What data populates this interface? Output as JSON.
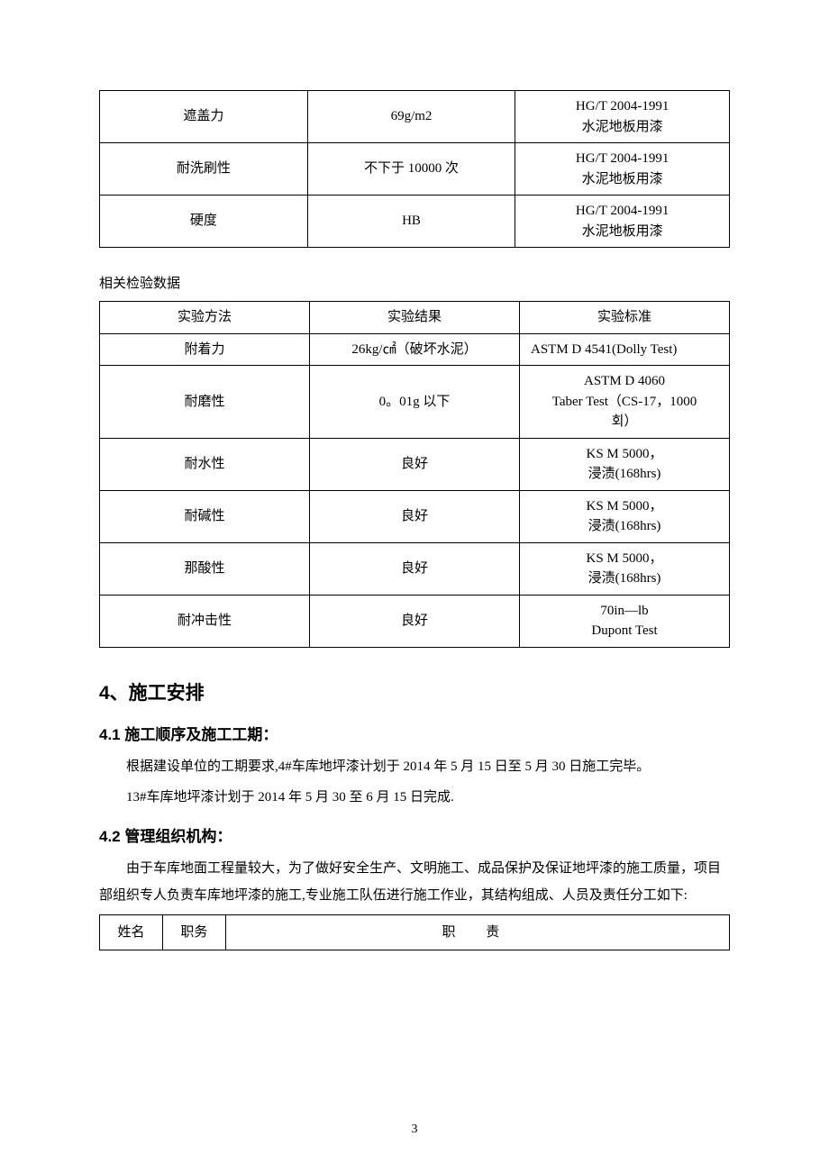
{
  "table1": {
    "rows": [
      {
        "c1": "遮盖力",
        "c2": "69g/m2",
        "c3": "HG/T 2004-1991\n水泥地板用漆"
      },
      {
        "c1": "耐洗刷性",
        "c2": "不下于 10000 次",
        "c3": "HG/T 2004-1991\n水泥地板用漆"
      },
      {
        "c1": "硬度",
        "c2": "HB",
        "c3": "HG/T 2004-1991\n水泥地板用漆"
      }
    ]
  },
  "subheading": "相关检验数据",
  "table2": {
    "header": {
      "c1": "实验方法",
      "c2": "实验结果",
      "c3": "实验标准"
    },
    "rows": [
      {
        "c1": "附着力",
        "c2": "26kg/㎠（破坏水泥）",
        "c3": "ASTM D 4541(Dolly Test)"
      },
      {
        "c1": "耐磨性",
        "c2": "0。01g 以下",
        "c3": "ASTM D 4060\nTaber Test（CS-17，1000\n회）"
      },
      {
        "c1": "耐水性",
        "c2": "良好",
        "c3": "KS M 5000，\n浸渍(168hrs)"
      },
      {
        "c1": "耐碱性",
        "c2": "良好",
        "c3": "KS M 5000，\n浸渍(168hrs)"
      },
      {
        "c1": "那酸性",
        "c2": "良好",
        "c3": "KS M 5000，\n浸渍(168hrs)"
      },
      {
        "c1": "耐冲击性",
        "c2": "良好",
        "c3": "70in—lb\nDupont Test"
      }
    ]
  },
  "section4": {
    "title": "4、施工安排",
    "sub41_title": "4.1 施工顺序及施工工期：",
    "sub41_p1": "根据建设单位的工期要求,4#车库地坪漆计划于 2014 年 5 月 15 日至 5 月 30 日施工完毕。",
    "sub41_p2": "13#车库地坪漆计划于 2014 年 5 月 30 至 6 月 15 日完成.",
    "sub42_title": "4.2 管理组织机构：",
    "sub42_p1": "由于车库地面工程量较大，为了做好安全生产、文明施工、成品保护及保证地坪漆的施工质量，项目部组织专人负责车库地坪漆的施工,专业施工队伍进行施工作业，其结构组成、人员及责任分工如下:"
  },
  "table3": {
    "header": {
      "name": "姓名",
      "role": "职务",
      "duty": "职   责"
    }
  },
  "pageNumber": "3",
  "colors": {
    "text": "#000000",
    "border": "#000000",
    "background": "#ffffff"
  },
  "fonts": {
    "body": "SimSun",
    "heading": "SimHei",
    "body_size": 15,
    "h2_size": 21,
    "h3_size": 17
  }
}
